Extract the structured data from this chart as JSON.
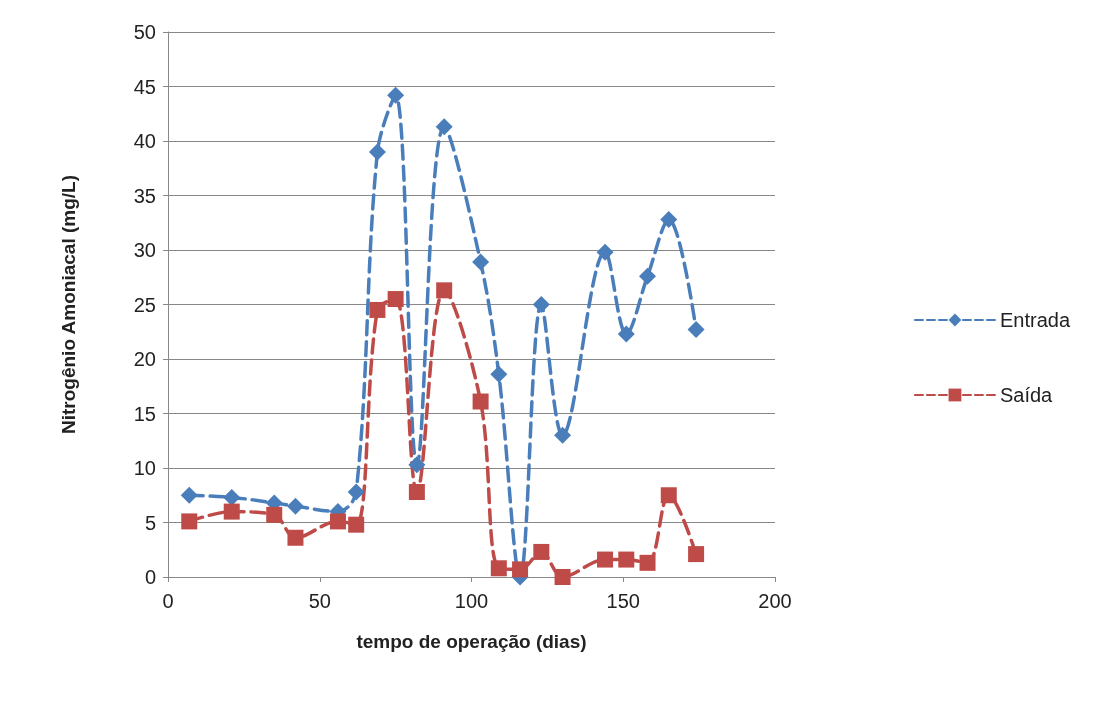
{
  "chart_data": {
    "type": "line",
    "xlabel": "tempo de operação (dias)",
    "ylabel": "Nitrogênio Amoniacal (mg/L)",
    "xlim": [
      0,
      200
    ],
    "xticks": [
      0,
      50,
      100,
      150,
      200
    ],
    "ylim": [
      0,
      50
    ],
    "yticks": [
      0,
      5,
      10,
      15,
      20,
      25,
      30,
      35,
      40,
      45,
      50
    ],
    "grid": "y",
    "legend": "right",
    "line_style": "dashed",
    "series": [
      {
        "name": "Entrada",
        "color": "#4a7ebb",
        "marker": "diamond",
        "x": [
          7,
          21,
          35,
          42,
          56,
          62,
          69,
          75,
          82,
          91,
          103,
          109,
          116,
          123,
          130,
          144,
          151,
          158,
          165,
          174
        ],
        "values": [
          7.5,
          7.3,
          6.8,
          6.5,
          6.0,
          7.8,
          39.0,
          44.2,
          10.3,
          41.3,
          28.9,
          18.6,
          0,
          25.0,
          13.0,
          29.8,
          22.3,
          27.6,
          32.8,
          22.7
        ]
      },
      {
        "name": "Saída",
        "color": "#be4b48",
        "marker": "square",
        "x": [
          7,
          21,
          35,
          42,
          56,
          62,
          69,
          75,
          82,
          91,
          103,
          109,
          116,
          123,
          130,
          144,
          151,
          158,
          165,
          174
        ],
        "values": [
          5.1,
          6.0,
          5.7,
          3.6,
          5.1,
          4.8,
          24.5,
          25.5,
          7.8,
          26.3,
          16.1,
          0.8,
          0.7,
          2.3,
          0,
          1.6,
          1.6,
          1.3,
          7.5,
          2.1
        ]
      }
    ]
  }
}
